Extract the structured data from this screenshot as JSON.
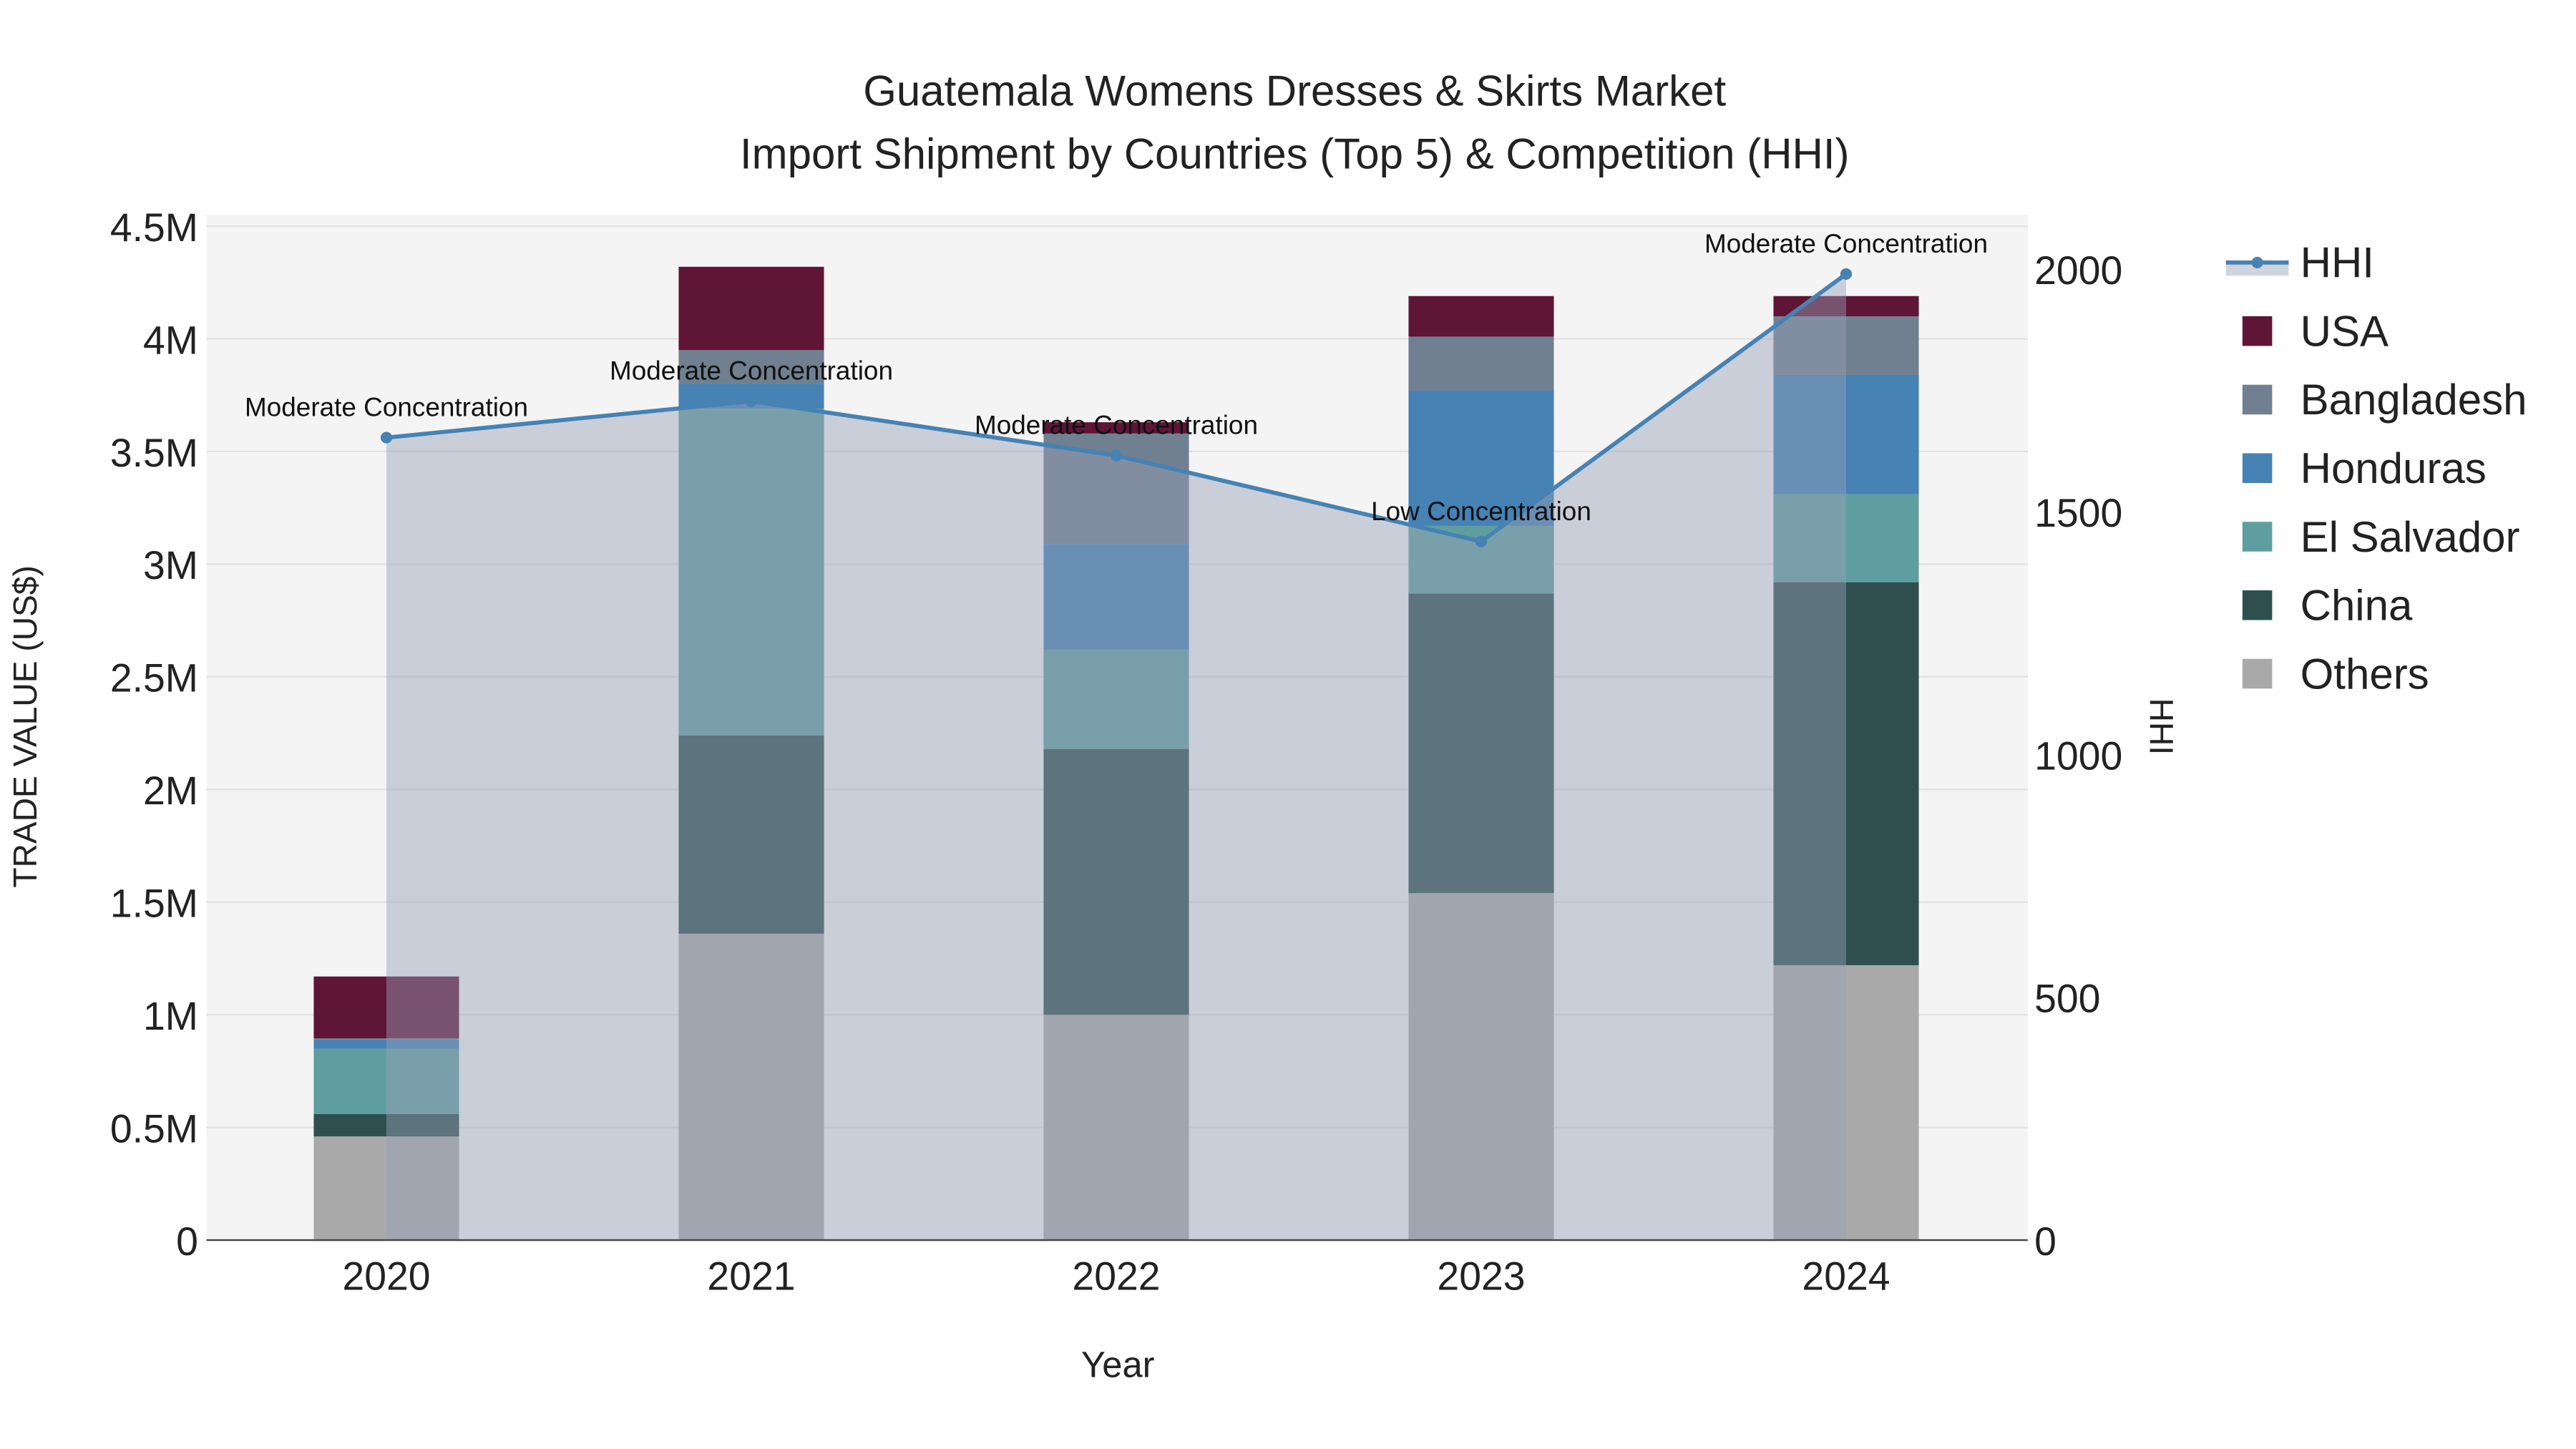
{
  "chart_data": {
    "type": "bar",
    "title": "Guatemala Womens Dresses & Skirts Market",
    "subtitle": "Import Shipment by Countries (Top 5) & Competition (HHI)",
    "xlabel": "Year",
    "ylabel": "TRADE VALUE (US$)",
    "y2label": "HHI",
    "categories": [
      "2020",
      "2021",
      "2022",
      "2023",
      "2024"
    ],
    "ylim": [
      0,
      4500000
    ],
    "y2lim": [
      0,
      2100
    ],
    "yticks": [
      {
        "v": 0,
        "label": "0"
      },
      {
        "v": 500000,
        "label": "0.5M"
      },
      {
        "v": 1000000,
        "label": "1M"
      },
      {
        "v": 1500000,
        "label": "1.5M"
      },
      {
        "v": 2000000,
        "label": "2M"
      },
      {
        "v": 2500000,
        "label": "2.5M"
      },
      {
        "v": 3000000,
        "label": "3M"
      },
      {
        "v": 3500000,
        "label": "3.5M"
      },
      {
        "v": 4000000,
        "label": "4M"
      },
      {
        "v": 4500000,
        "label": "4.5M"
      }
    ],
    "y2ticks": [
      {
        "v": 0,
        "label": "0"
      },
      {
        "v": 500,
        "label": "500"
      },
      {
        "v": 1000,
        "label": "1000"
      },
      {
        "v": 1500,
        "label": "1500"
      },
      {
        "v": 2000,
        "label": "2000"
      }
    ],
    "stacked": true,
    "series": [
      {
        "name": "Others",
        "color": "#a9a9a9",
        "values": [
          460000,
          1360000,
          1000000,
          1540000,
          1220000
        ]
      },
      {
        "name": "China",
        "color": "#2f4f4f",
        "values": [
          100000,
          880000,
          1180000,
          1330000,
          1700000
        ]
      },
      {
        "name": "El Salvador",
        "color": "#5f9ea0",
        "values": [
          290000,
          1450000,
          440000,
          300000,
          390000
        ]
      },
      {
        "name": "Honduras",
        "color": "#4682b4",
        "values": [
          40000,
          110000,
          470000,
          600000,
          530000
        ]
      },
      {
        "name": "Bangladesh",
        "color": "#708090",
        "values": [
          5000,
          150000,
          490000,
          240000,
          260000
        ]
      },
      {
        "name": "USA",
        "color": "#5f1536",
        "values": [
          275000,
          370000,
          50000,
          180000,
          90000
        ]
      }
    ],
    "hhi": {
      "name": "HHI",
      "color": "#4682b4",
      "values": [
        1653,
        1728,
        1616,
        1439,
        1990
      ],
      "annotations": [
        "Moderate Concentration",
        "Moderate Concentration",
        "Moderate Concentration",
        "Low Concentration",
        "Moderate Concentration"
      ]
    },
    "legend": {
      "placement": "right",
      "order": [
        "HHI",
        "USA",
        "Bangladesh",
        "Honduras",
        "El Salvador",
        "China",
        "Others"
      ]
    }
  }
}
